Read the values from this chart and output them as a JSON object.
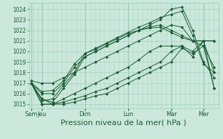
{
  "background_color": "#cce8dc",
  "grid_color": "#99ccbb",
  "line_color": "#1a5c32",
  "xlabel": "Pression niveau de la mer( hPa )",
  "xlabel_fontsize": 8,
  "yticks": [
    1015,
    1016,
    1017,
    1018,
    1019,
    1020,
    1021,
    1022,
    1023,
    1024
  ],
  "ylim": [
    1014.6,
    1024.6
  ],
  "xtick_labels": [
    "Sam",
    "Jeu",
    "Dim",
    "Lun",
    "Mar",
    "Mer"
  ],
  "xtick_positions": [
    0,
    0.5,
    2.5,
    4.5,
    6.5,
    8.0
  ],
  "xlim": [
    -0.1,
    8.7
  ],
  "minor_xtick_count": 40,
  "series": [
    {
      "x": [
        0,
        0.5,
        1.0,
        1.5,
        2.0,
        2.5,
        3.0,
        3.5,
        4.0,
        4.5,
        5.0,
        5.5,
        6.0,
        6.5,
        7.0,
        7.5,
        8.0,
        8.5
      ],
      "y": [
        1017.0,
        1015.5,
        1015.2,
        1016.5,
        1017.8,
        1019.5,
        1020.0,
        1020.5,
        1021.0,
        1021.5,
        1022.0,
        1022.5,
        1023.0,
        1024.0,
        1024.2,
        1022.0,
        1019.0,
        1017.5
      ]
    },
    {
      "x": [
        0,
        0.5,
        1.0,
        1.5,
        2.0,
        2.5,
        3.0,
        3.5,
        4.0,
        4.5,
        5.0,
        5.5,
        6.0,
        6.5,
        7.0,
        7.5,
        8.0,
        8.5
      ],
      "y": [
        1017.0,
        1015.3,
        1015.5,
        1016.8,
        1018.0,
        1019.8,
        1020.3,
        1020.8,
        1021.3,
        1021.8,
        1022.3,
        1022.7,
        1023.2,
        1023.5,
        1023.8,
        1021.5,
        1018.8,
        1018.0
      ]
    },
    {
      "x": [
        0,
        0.5,
        1.0,
        1.5,
        2.0,
        2.5,
        3.0,
        3.5,
        4.0,
        4.5,
        5.0,
        5.5,
        6.0,
        6.5,
        7.0,
        7.5,
        8.0,
        8.5
      ],
      "y": [
        1017.0,
        1016.0,
        1016.0,
        1017.0,
        1018.5,
        1019.5,
        1020.0,
        1020.5,
        1021.0,
        1021.5,
        1022.0,
        1022.3,
        1022.5,
        1022.0,
        1021.5,
        1021.0,
        1021.0,
        1021.0
      ]
    },
    {
      "x": [
        0,
        0.5,
        1.0,
        1.5,
        2.0,
        2.5,
        3.0,
        3.5,
        4.0,
        4.5,
        5.0,
        5.5,
        6.0,
        6.5,
        7.0,
        7.5,
        8.0,
        8.5
      ],
      "y": [
        1017.0,
        1016.2,
        1016.3,
        1017.2,
        1018.8,
        1019.8,
        1020.2,
        1020.7,
        1021.2,
        1021.7,
        1022.0,
        1022.2,
        1022.3,
        1021.8,
        1021.3,
        1021.0,
        1021.0,
        1021.0
      ]
    },
    {
      "x": [
        0,
        0.5,
        1.0,
        1.5,
        2.0,
        2.5,
        3.0,
        3.5,
        4.0,
        4.5,
        5.0,
        5.5,
        6.0,
        6.5,
        7.0,
        7.5,
        8.0,
        8.5
      ],
      "y": [
        1017.2,
        1017.0,
        1017.0,
        1017.5,
        1018.0,
        1018.5,
        1019.0,
        1019.5,
        1020.0,
        1020.5,
        1021.0,
        1021.5,
        1022.0,
        1022.5,
        1022.3,
        1021.0,
        1020.5,
        1018.5
      ]
    },
    {
      "x": [
        0,
        0.5,
        1.0,
        1.5,
        2.0,
        2.5,
        3.0,
        3.5,
        4.0,
        4.5,
        5.0,
        5.5,
        6.0,
        6.5,
        7.0,
        7.5,
        8.0,
        8.5
      ],
      "y": [
        1017.0,
        1015.5,
        1015.0,
        1015.5,
        1016.0,
        1016.5,
        1017.0,
        1017.5,
        1018.0,
        1018.5,
        1019.2,
        1020.0,
        1020.5,
        1020.5,
        1020.5,
        1019.5,
        1021.0,
        1018.0
      ]
    },
    {
      "x": [
        0,
        0.5,
        1.0,
        1.5,
        2.0,
        2.5,
        3.0,
        3.5,
        4.0,
        4.5,
        5.0,
        5.5,
        6.0,
        6.5,
        7.0,
        7.5,
        8.0,
        8.5
      ],
      "y": [
        1017.0,
        1015.0,
        1015.0,
        1015.2,
        1015.5,
        1015.8,
        1016.2,
        1016.5,
        1017.0,
        1017.5,
        1018.0,
        1018.5,
        1019.0,
        1020.0,
        1020.5,
        1020.0,
        1021.0,
        1016.5
      ]
    },
    {
      "x": [
        0,
        0.5,
        1.0,
        1.5,
        2.0,
        2.5,
        3.0,
        3.5,
        4.0,
        4.5,
        5.0,
        5.5,
        6.0,
        6.5,
        7.0,
        7.5,
        8.0,
        8.5
      ],
      "y": [
        1017.0,
        1015.0,
        1015.0,
        1015.0,
        1015.2,
        1015.5,
        1015.8,
        1016.0,
        1016.5,
        1017.0,
        1017.5,
        1018.0,
        1018.5,
        1019.0,
        1020.3,
        1019.8,
        1020.5,
        1016.5
      ]
    }
  ]
}
